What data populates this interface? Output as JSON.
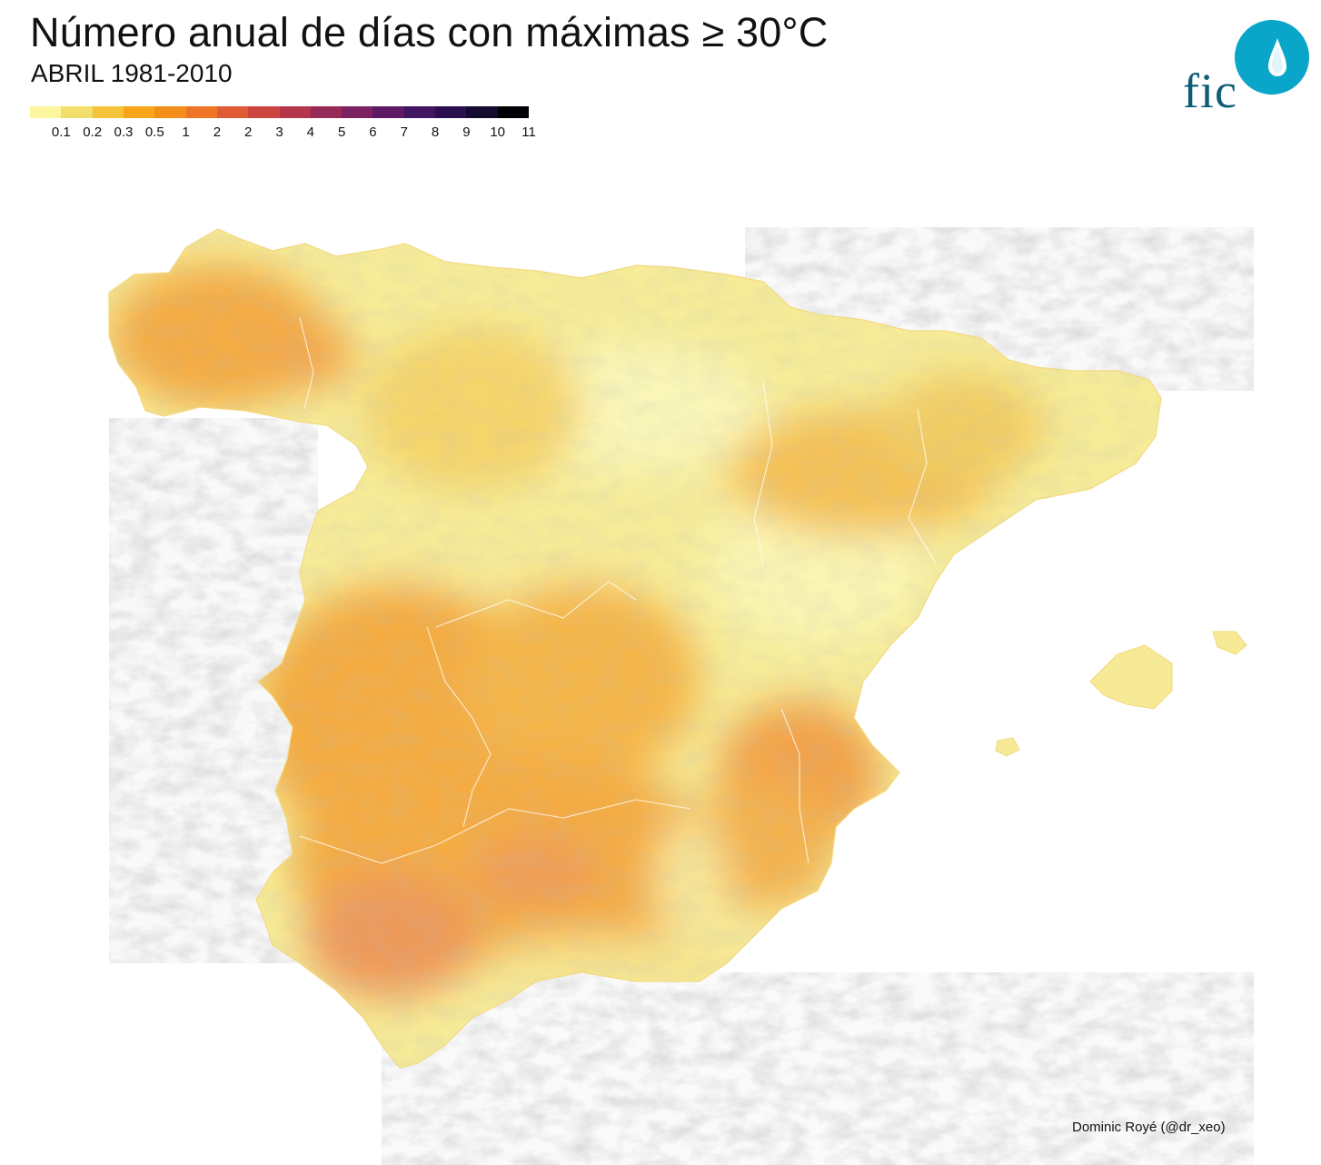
{
  "header": {
    "title": "Número anual de días con máximas ≥ 30°C",
    "subtitle": "ABRIL 1981-2010"
  },
  "legend": {
    "tick_labels": [
      "0.1",
      "0.2",
      "0.3",
      "0.5",
      "1",
      "2",
      "2",
      "3",
      "4",
      "5",
      "6",
      "7",
      "8",
      "9",
      "10",
      "11"
    ],
    "colors": [
      "#fcf6a0",
      "#f2de6a",
      "#f5c33a",
      "#f7a61c",
      "#f48e1a",
      "#ee7428",
      "#e05a35",
      "#cc4541",
      "#b3364c",
      "#982a57",
      "#7c2260",
      "#5f1a66",
      "#421563",
      "#2a0e4e",
      "#150a30",
      "#000004"
    ]
  },
  "logo": {
    "text": "fic",
    "circle_color": "#0aa6c9",
    "text_color": "#0d5d78",
    "icon": "water-drop-icon"
  },
  "map": {
    "region": "Iberian Peninsula and Balearic Islands",
    "background_relief_color": "#d6d6d6",
    "dominant_colors": {
      "low": "#f8f2a6",
      "mid": "#f5d266",
      "high": "#f4ae45",
      "peak": "#ef8f5a"
    }
  },
  "credit": "Dominic Royé (@dr_xeo)"
}
